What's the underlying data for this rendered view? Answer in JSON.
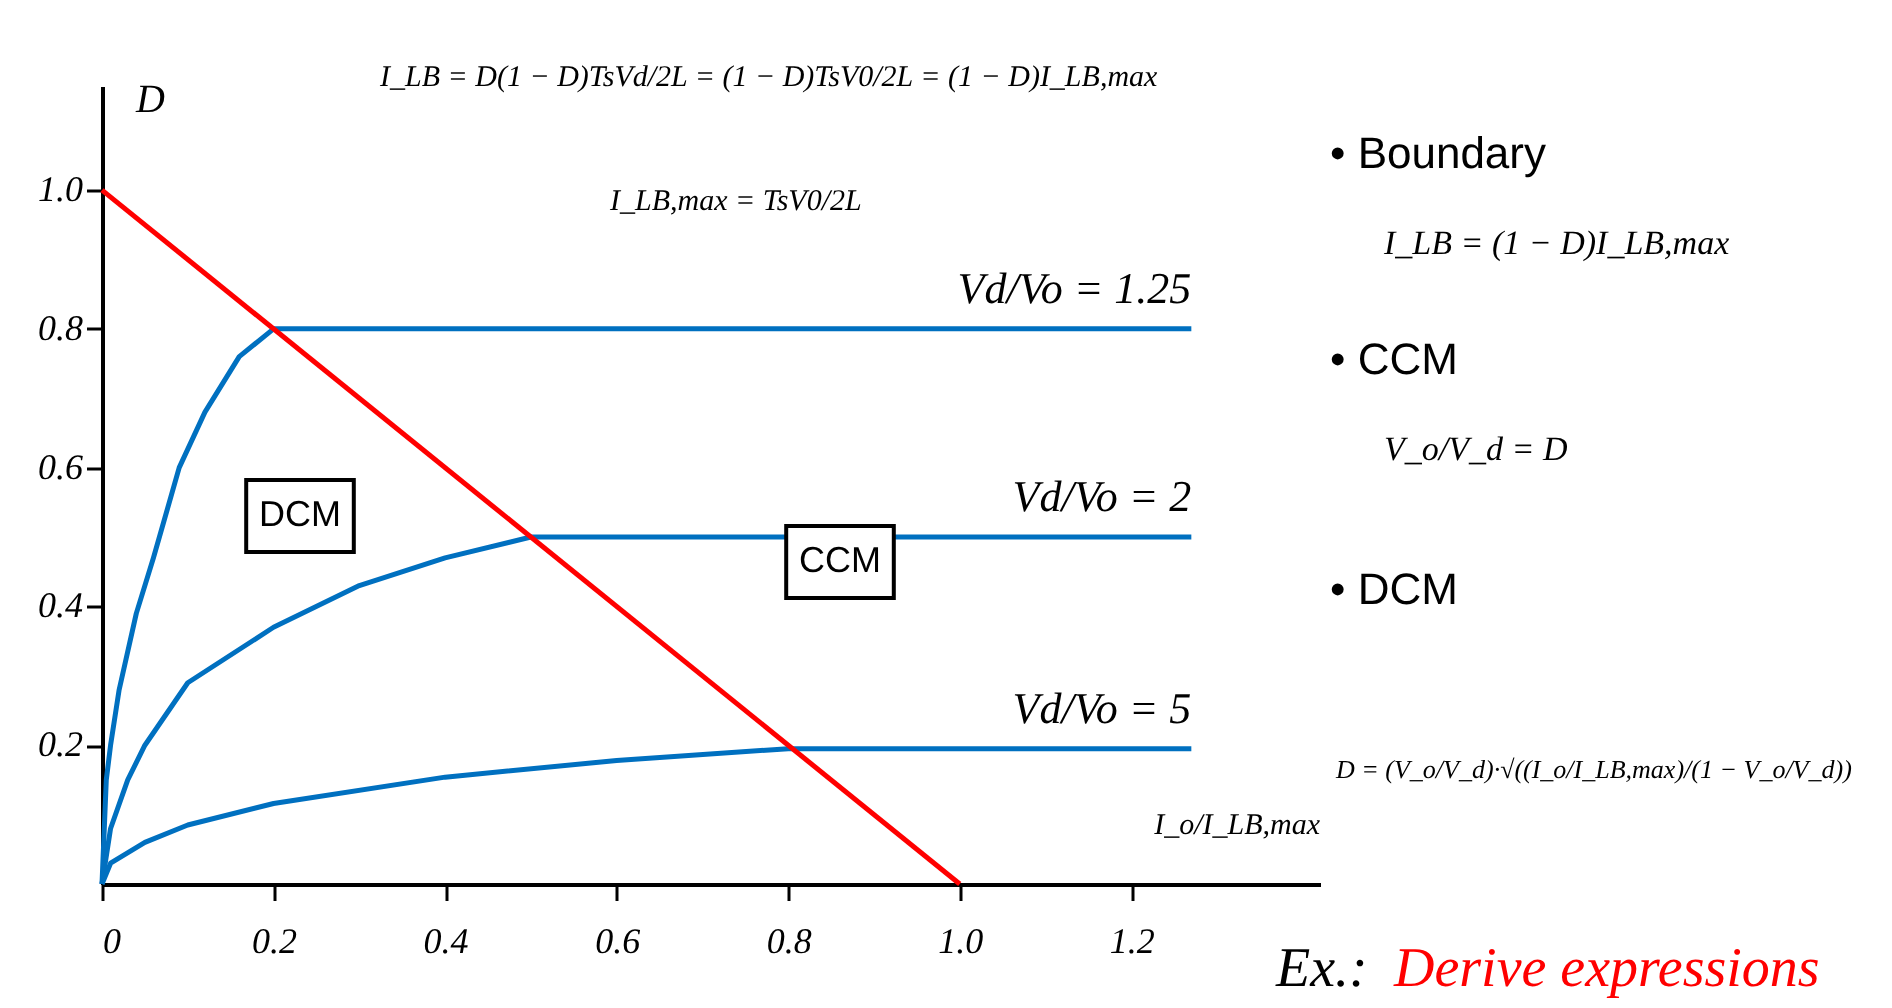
{
  "chart_data": {
    "type": "line",
    "xlabel": "I_o/I_LB,max",
    "ylabel": "D",
    "xlim": [
      0,
      1.42
    ],
    "ylim": [
      0,
      1.15
    ],
    "xticks": [
      0,
      0.2,
      0.4,
      0.6,
      0.8,
      {
        "value": 1,
        "label": "1.0"
      },
      1.2
    ],
    "yticks": [
      0.2,
      0.4,
      0.6,
      0.8,
      {
        "value": 1,
        "label": "1.0"
      }
    ],
    "grid": false,
    "legend": false,
    "marker": "none",
    "line_style": "solid",
    "series": [
      {
        "name": "Vd/Vo = 1.25",
        "color": "#0070c0",
        "x": [
          0,
          0.005,
          0.01,
          0.02,
          0.04,
          0.06,
          0.09,
          0.12,
          0.16,
          0.2,
          1.27
        ],
        "values": [
          0,
          0.15,
          0.2,
          0.28,
          0.39,
          0.47,
          0.6,
          0.68,
          0.76,
          0.8,
          0.8
        ]
      },
      {
        "name": "Vd/Vo = 2",
        "color": "#0070c0",
        "x": [
          0,
          0.01,
          0.03,
          0.05,
          0.1,
          0.2,
          0.3,
          0.4,
          0.5,
          1.27
        ],
        "values": [
          0,
          0.08,
          0.15,
          0.2,
          0.29,
          0.37,
          0.43,
          0.47,
          0.5,
          0.5
        ]
      },
      {
        "name": "Vd/Vo = 5",
        "color": "#0070c0",
        "x": [
          0,
          0.01,
          0.05,
          0.1,
          0.2,
          0.4,
          0.6,
          0.8,
          1.27
        ],
        "values": [
          0,
          0.03,
          0.06,
          0.085,
          0.116,
          0.154,
          0.178,
          0.195,
          0.195
        ]
      },
      {
        "color": "#ff0000",
        "x": [
          0,
          1
        ],
        "values": [
          1,
          0
        ]
      }
    ],
    "annotations": [
      "I_LB = D(1 − D)TsVd/2L = (1 − D)TsV0/2L = (1 − D)I_LB,max",
      "I_LB,max = TsV0/2L",
      "DCM",
      "CCM",
      "• Boundary",
      "I_LB = (1 − D)I_LB,max",
      "• CCM",
      "V_o/V_d = D",
      "• DCM",
      "D = (V_o/V_d)·√((I_o/I_LB,max)/(1 − V_o/V_d))",
      "Ex.:",
      "Derive expressions"
    ]
  }
}
